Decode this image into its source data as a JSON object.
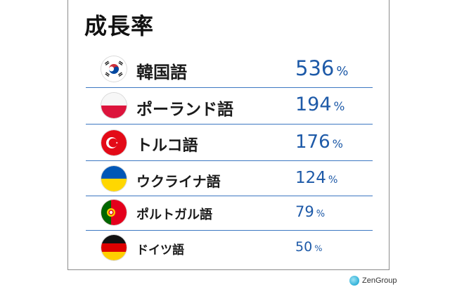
{
  "chart_data": {
    "type": "table",
    "title": "成長率",
    "rows": [
      {
        "language": "韓国語",
        "value": 536,
        "unit": "%",
        "flag": "south-korea"
      },
      {
        "language": "ポーランド語",
        "value": 194,
        "unit": "%",
        "flag": "poland"
      },
      {
        "language": "トルコ語",
        "value": 176,
        "unit": "%",
        "flag": "turkey"
      },
      {
        "language": "ウクライナ語",
        "value": 124,
        "unit": "%",
        "flag": "ukraine"
      },
      {
        "language": "ポルトガル語",
        "value": 79,
        "unit": "%",
        "flag": "portugal"
      },
      {
        "language": "ドイツ語",
        "value": 50,
        "unit": "%",
        "flag": "germany"
      }
    ]
  },
  "brand": {
    "name": "ZenGroup"
  },
  "colors": {
    "value": "#1e5aa8",
    "divider": "#3d78c2"
  }
}
